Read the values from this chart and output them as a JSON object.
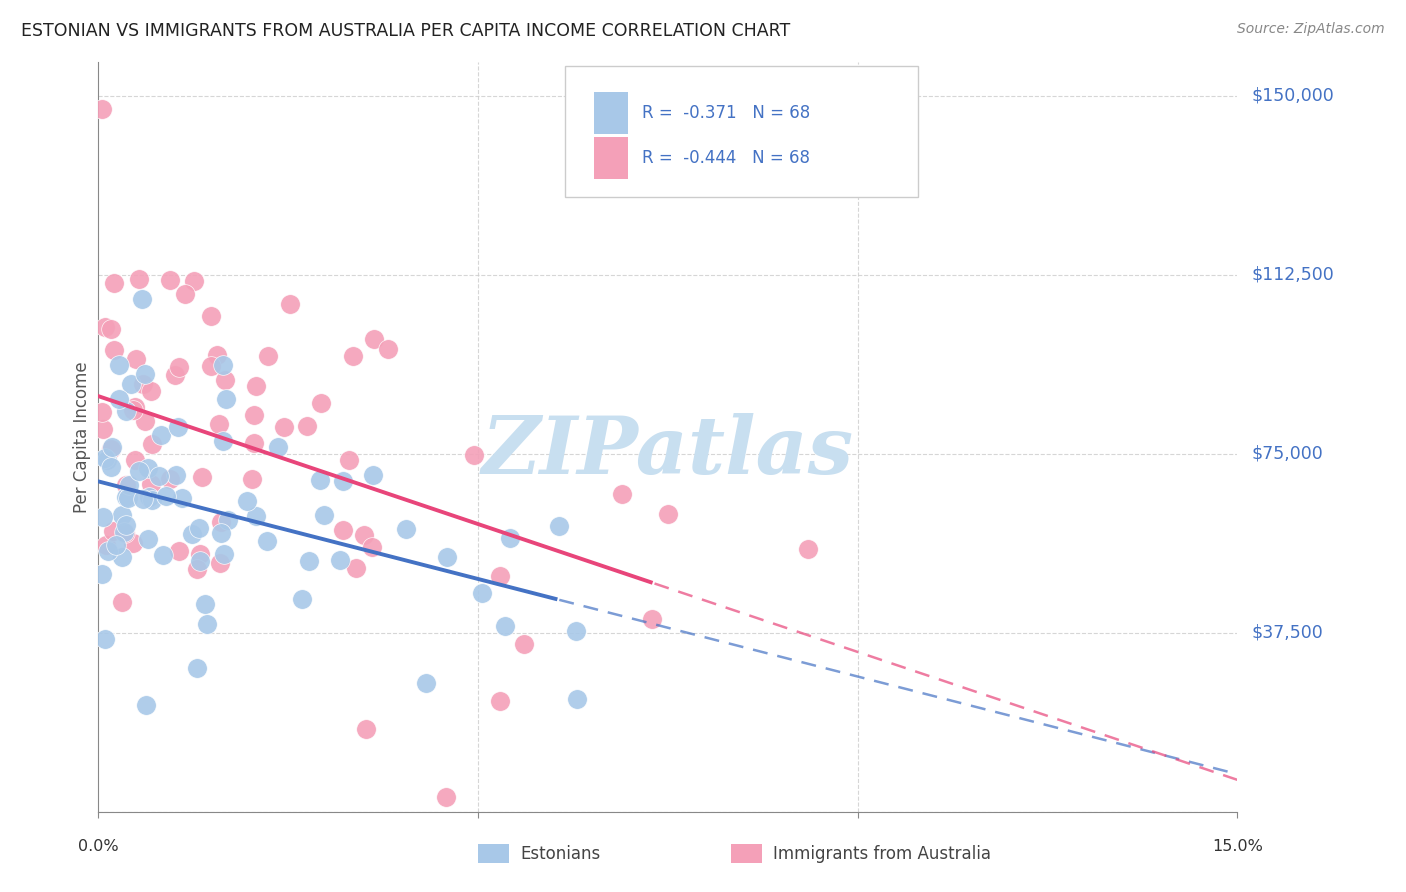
{
  "title": "ESTONIAN VS IMMIGRANTS FROM AUSTRALIA PER CAPITA INCOME CORRELATION CHART",
  "source": "Source: ZipAtlas.com",
  "ylabel": "Per Capita Income",
  "yticks": [
    0,
    37500,
    75000,
    112500,
    150000
  ],
  "ytick_labels": [
    "",
    "$37,500",
    "$75,000",
    "$112,500",
    "$150,000"
  ],
  "xlim": [
    0.0,
    0.15
  ],
  "ylim": [
    0,
    157000
  ],
  "color_estonian": "#a8c8e8",
  "color_immigrant": "#f4a0b8",
  "trendline_estonian": "#4472c4",
  "trendline_immigrant": "#e8457a",
  "watermark_color": "#c8dff0",
  "grid_color": "#cccccc",
  "title_color": "#222222",
  "source_color": "#888888",
  "legend_text_color": "#4472c4",
  "bottom_legend_color": "#444444",
  "axis_color": "#888888",
  "r_est": -0.371,
  "r_imm": -0.444,
  "n": 68,
  "seed_est": 42,
  "seed_imm": 99
}
